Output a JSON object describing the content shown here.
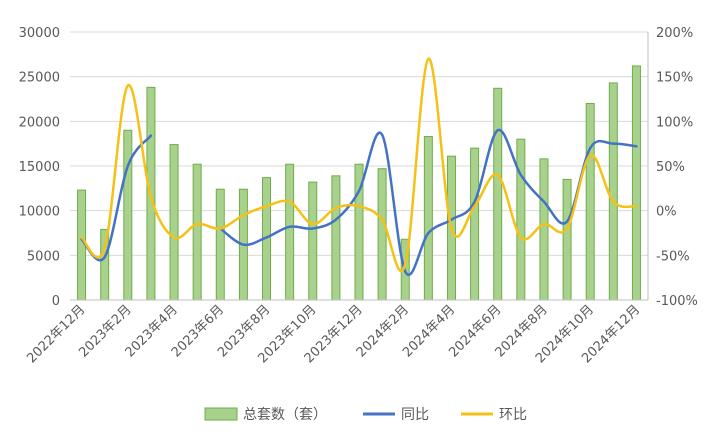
{
  "chart_data": {
    "type": "bar+line",
    "categories": [
      "2022年12月",
      "2023年1月",
      "2023年2月",
      "2023年3月",
      "2023年4月",
      "2023年5月",
      "2023年6月",
      "2023年7月",
      "2023年8月",
      "2023年9月",
      "2023年10月",
      "2023年11月",
      "2023年12月",
      "2024年1月",
      "2024年2月",
      "2024年3月",
      "2024年4月",
      "2024年5月",
      "2024年6月",
      "2024年7月",
      "2024年8月",
      "2024年9月",
      "2024年10月",
      "2024年11月",
      "2024年12月"
    ],
    "x_tick_labels": [
      "2022年12月",
      "2023年2月",
      "2023年4月",
      "2023年6月",
      "2023年8月",
      "2023年10月",
      "2023年12月",
      "2024年2月",
      "2024年4月",
      "2024年6月",
      "2024年8月",
      "2024年10月",
      "2024年12月"
    ],
    "series": [
      {
        "name": "总套数（套）",
        "type": "bar",
        "axis": "left",
        "color": "#a9d18e",
        "values": [
          12300,
          7900,
          19000,
          23800,
          17400,
          15200,
          12400,
          12400,
          13700,
          15200,
          13200,
          13900,
          15200,
          14700,
          6800,
          18300,
          16100,
          17000,
          23700,
          18000,
          15800,
          13500,
          22000,
          24300,
          26200
        ]
      },
      {
        "name": "同比",
        "type": "line",
        "axis": "right",
        "color": "#4472c4",
        "values": [
          -0.32,
          -0.52,
          0.5,
          0.84,
          null,
          null,
          -0.2,
          -0.38,
          -0.3,
          -0.18,
          -0.2,
          -0.1,
          0.22,
          0.85,
          -0.68,
          -0.25,
          -0.1,
          0.1,
          0.9,
          0.4,
          0.1,
          -0.12,
          0.7,
          0.75,
          0.72
        ]
      },
      {
        "name": "环比",
        "type": "line",
        "axis": "right",
        "color": "#f5c116",
        "values": [
          -0.3,
          -0.42,
          1.4,
          0.15,
          -0.3,
          -0.15,
          -0.2,
          -0.05,
          0.05,
          0.1,
          -0.15,
          0.03,
          0.05,
          -0.1,
          -0.6,
          1.7,
          -0.2,
          0.05,
          0.4,
          -0.3,
          -0.15,
          -0.2,
          0.62,
          0.1,
          0.05
        ]
      }
    ],
    "y_left": {
      "min": 0,
      "max": 30000,
      "step": 5000,
      "ticks": [
        "0",
        "5000",
        "10000",
        "15000",
        "20000",
        "25000",
        "30000"
      ]
    },
    "y_right": {
      "min": -1.0,
      "max": 2.0,
      "step": 0.5,
      "ticks": [
        "-100%",
        "-50%",
        "0%",
        "50%",
        "100%",
        "150%",
        "200%"
      ]
    },
    "legend_position": "bottom",
    "grid": true
  }
}
